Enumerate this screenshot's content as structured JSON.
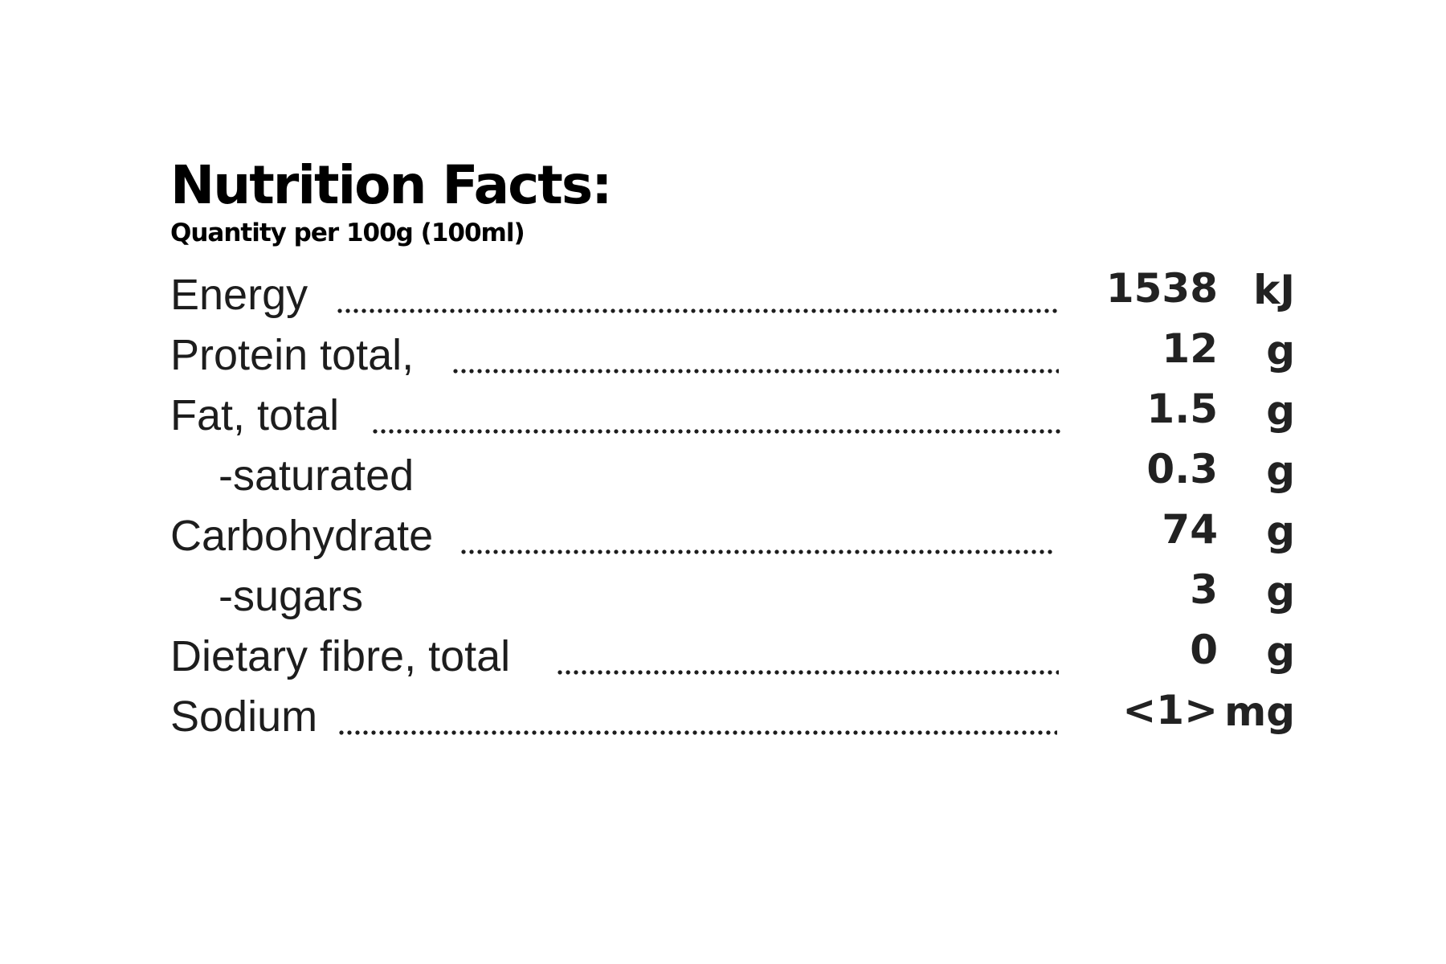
{
  "title": "Nutrition Facts:",
  "subtitle": "Quantity per 100g (100ml)",
  "rows": [
    {
      "label": "Energy",
      "value": "1538",
      "unit": "kJ",
      "indented": false,
      "dotted": true
    },
    {
      "label": "Protein total,",
      "value": "12",
      "unit": "g",
      "indented": false,
      "dotted": true
    },
    {
      "label": "Fat, total",
      "value": "1.5",
      "unit": "g",
      "indented": false,
      "dotted": true
    },
    {
      "label": "-saturated",
      "value": "0.3",
      "unit": "g",
      "indented": true,
      "dotted": false
    },
    {
      "label": "Carbohydrate",
      "value": "74",
      "unit": "g",
      "indented": false,
      "dotted": true
    },
    {
      "label": "-sugars",
      "value": "3",
      "unit": "g",
      "indented": true,
      "dotted": false
    },
    {
      "label": "Dietary fibre, total",
      "value": "0",
      "unit": "g",
      "indented": false,
      "dotted": true
    },
    {
      "label": "Sodium",
      "value": "<1>",
      "unit": "mg",
      "indented": false,
      "dotted": true
    }
  ]
}
